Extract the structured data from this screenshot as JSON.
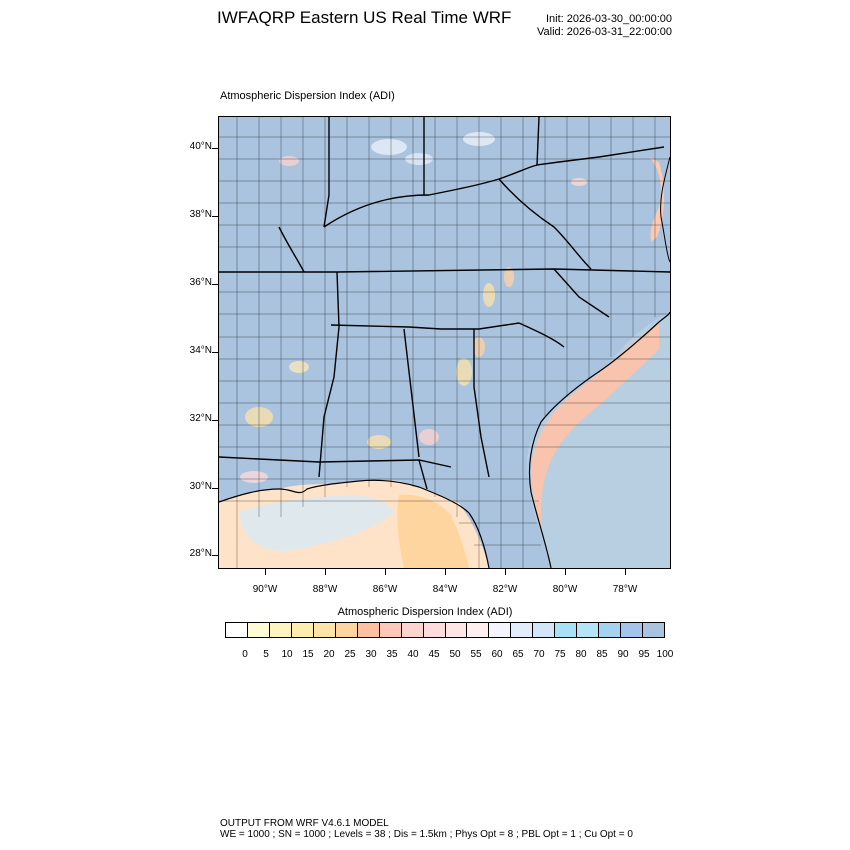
{
  "header": {
    "title": "IWFAQRP Eastern US Real Time WRF",
    "init": "Init: 2026-03-30_00:00:00",
    "valid": "Valid: 2026-03-31_22:00:00"
  },
  "plot": {
    "title": "Atmospheric Dispersion Index   (ADI)",
    "lat_labels": [
      "40°N",
      "38°N",
      "36°N",
      "34°N",
      "32°N",
      "30°N",
      "28°N"
    ],
    "lon_labels": [
      "90°W",
      "88°W",
      "86°W",
      "84°W",
      "82°W",
      "80°W",
      "78°W"
    ],
    "land_color": "#aac3de",
    "boundary_color": "#000000"
  },
  "colorbar": {
    "title": "Atmospheric Dispersion Index  (ADI)",
    "labels": [
      "0",
      "5",
      "10",
      "15",
      "20",
      "25",
      "30",
      "35",
      "40",
      "45",
      "50",
      "55",
      "60",
      "65",
      "70",
      "75",
      "80",
      "85",
      "90",
      "95",
      "100"
    ],
    "colors": [
      "#ffffff",
      "#fffbd4",
      "#fff4c0",
      "#ffedb0",
      "#ffe3a8",
      "#ffd4a0",
      "#ffbfa0",
      "#ffc8b8",
      "#ffd4ce",
      "#ffdcdc",
      "#ffe6e6",
      "#fff0f0",
      "#f4f4ff",
      "#e2ecfa",
      "#d2e6f8",
      "#a8e0f8",
      "#b4e4f6",
      "#a6d2f2",
      "#a4c4ec",
      "#aac3de"
    ]
  },
  "footer": {
    "line1": "OUTPUT FROM WRF V4.6.1 MODEL",
    "line2": "WE = 1000 ; SN = 1000 ; Levels = 38 ; Dis = 1.5km ; Phys Opt = 8 ; PBL Opt = 1 ; Cu Opt = 0"
  }
}
